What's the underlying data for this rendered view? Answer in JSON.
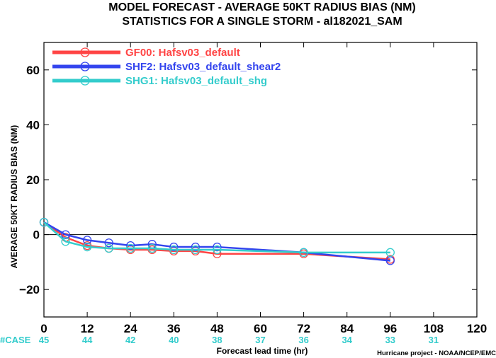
{
  "chart_data": {
    "type": "line",
    "title": "MODEL FORECAST - AVERAGE 50KT RADIUS BIAS (NM)",
    "subtitle": "STATISTICS FOR A SINGLE STORM - al182021_SAM",
    "xlabel": "Forecast lead time (hr)",
    "ylabel": "AVERAGE 50KT RADIUS BIAS (NM)",
    "xlim": [
      0,
      120
    ],
    "ylim": [
      -30,
      70
    ],
    "xticks": [
      0,
      12,
      24,
      36,
      48,
      60,
      72,
      84,
      96,
      108,
      120
    ],
    "yticks": [
      -20,
      0,
      20,
      40,
      60
    ],
    "zero_line": true,
    "grid": false,
    "legend_position": "top-left",
    "case_label": "#CASE",
    "cases": [
      {
        "x": 0,
        "n": "45"
      },
      {
        "x": 12,
        "n": "44"
      },
      {
        "x": 24,
        "n": "42"
      },
      {
        "x": 36,
        "n": "40"
      },
      {
        "x": 48,
        "n": "38"
      },
      {
        "x": 60,
        "n": "37"
      },
      {
        "x": 72,
        "n": "36"
      },
      {
        "x": 84,
        "n": "34"
      },
      {
        "x": 96,
        "n": "33"
      },
      {
        "x": 108,
        "n": "31"
      }
    ],
    "credit": "Hurricane project - NOAA/NCEP/EMC",
    "series": [
      {
        "name": "GF00: Hafsv03_default",
        "color": "#ff4444",
        "x": [
          0,
          6,
          12,
          18,
          24,
          30,
          36,
          42,
          48,
          72,
          96
        ],
        "y": [
          4.5,
          -1,
          -4,
          -5,
          -5.5,
          -5.5,
          -6,
          -6,
          -7,
          -7,
          -9
        ]
      },
      {
        "name": "SHF2: Hafsv03_default_shear2",
        "color": "#3344ee",
        "x": [
          0,
          6,
          12,
          18,
          24,
          30,
          36,
          42,
          48,
          72,
          96
        ],
        "y": [
          4.5,
          0,
          -2,
          -3,
          -4,
          -3.5,
          -4.5,
          -4.5,
          -4.5,
          -6.5,
          -9.5
        ]
      },
      {
        "name": "SHG1: Hafsv03_default_shg",
        "color": "#33cccc",
        "x": [
          0,
          6,
          12,
          18,
          24,
          30,
          36,
          42,
          48,
          72,
          96
        ],
        "y": [
          4.5,
          -2.5,
          -4.5,
          -5,
          -5,
          -5,
          -5.5,
          -5.5,
          -5.5,
          -6.5,
          -6.5
        ]
      }
    ]
  }
}
